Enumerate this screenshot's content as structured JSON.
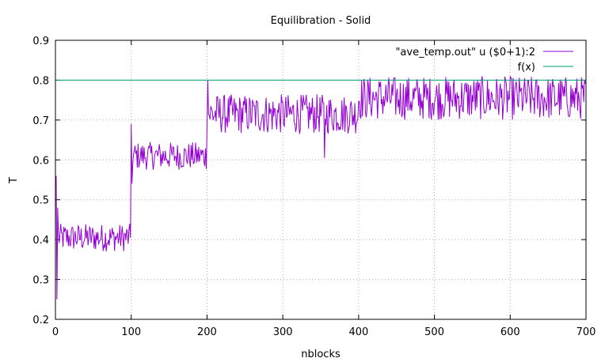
{
  "chart_data": {
    "type": "line",
    "title": "Equilibration - Solid",
    "xlabel": "nblocks",
    "ylabel": "T",
    "xlim": [
      0,
      700
    ],
    "ylim": [
      0.2,
      0.9
    ],
    "xticks": [
      0,
      100,
      200,
      300,
      400,
      500,
      600,
      700
    ],
    "yticks": [
      0.2,
      0.3,
      0.4,
      0.5,
      0.6,
      0.7,
      0.8,
      0.9
    ],
    "grid": true,
    "legend_position": "top-right",
    "series": [
      {
        "name": "\"ave_temp.out\" u ($0+1):2",
        "color": "#9400d3",
        "style": "noisy line",
        "segments": [
          {
            "x_start": 1,
            "x_end": 99,
            "mean": 0.405,
            "amplitude": 0.035
          },
          {
            "x_start": 100,
            "x_end": 199,
            "mean": 0.61,
            "amplitude": 0.035
          },
          {
            "x_start": 200,
            "x_end": 399,
            "mean": 0.715,
            "amplitude": 0.05
          },
          {
            "x_start": 400,
            "x_end": 700,
            "mean": 0.755,
            "amplitude": 0.055
          }
        ],
        "key_points": [
          {
            "x": 1,
            "y": 0.56
          },
          {
            "x": 2,
            "y": 0.25
          },
          {
            "x": 3,
            "y": 0.48
          },
          {
            "x": 100,
            "y": 0.69
          },
          {
            "x": 101,
            "y": 0.54
          },
          {
            "x": 201,
            "y": 0.8
          },
          {
            "x": 355,
            "y": 0.605
          }
        ]
      },
      {
        "name": "f(x)",
        "color": "#009e73",
        "type": "constant",
        "y": 0.8
      }
    ]
  }
}
